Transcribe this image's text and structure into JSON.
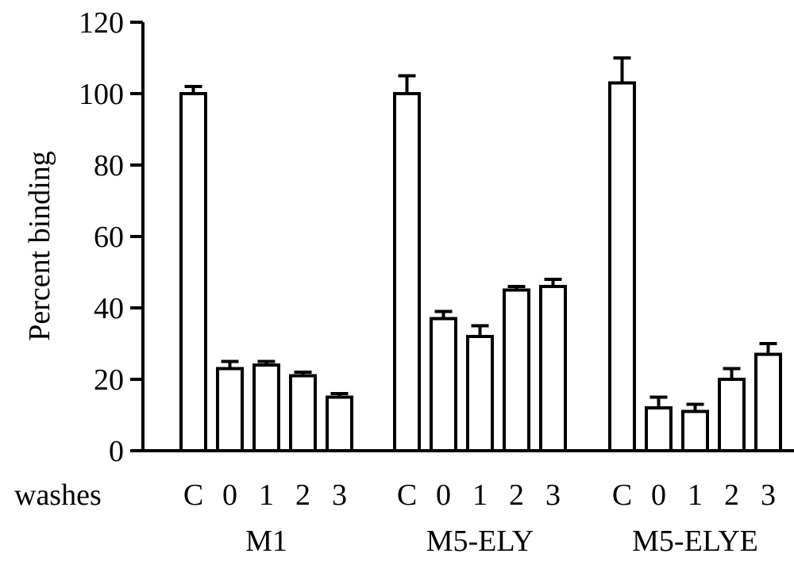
{
  "chart_data": {
    "type": "bar",
    "title": "",
    "ylabel": "Percent binding",
    "xlabel": "",
    "ylim": [
      0,
      120
    ],
    "yticks": [
      0,
      20,
      40,
      60,
      80,
      100,
      120
    ],
    "grid": false,
    "legend": "none",
    "row_label": "washes",
    "categories": [
      "C",
      "0",
      "1",
      "2",
      "3"
    ],
    "groups": [
      {
        "name": "M1",
        "values": [
          100,
          23,
          24,
          21,
          15
        ],
        "errors": [
          2,
          2,
          1,
          1,
          1
        ]
      },
      {
        "name": "M5-ELY",
        "values": [
          100,
          37,
          32,
          45,
          46
        ],
        "errors": [
          5,
          2,
          3,
          1,
          2
        ]
      },
      {
        "name": "M5-ELYE",
        "values": [
          103,
          12,
          11,
          20,
          27
        ],
        "errors": [
          7,
          3,
          2,
          3,
          3
        ]
      }
    ],
    "colors": {
      "bar_fill": "#ffffff",
      "stroke": "#000000"
    }
  }
}
